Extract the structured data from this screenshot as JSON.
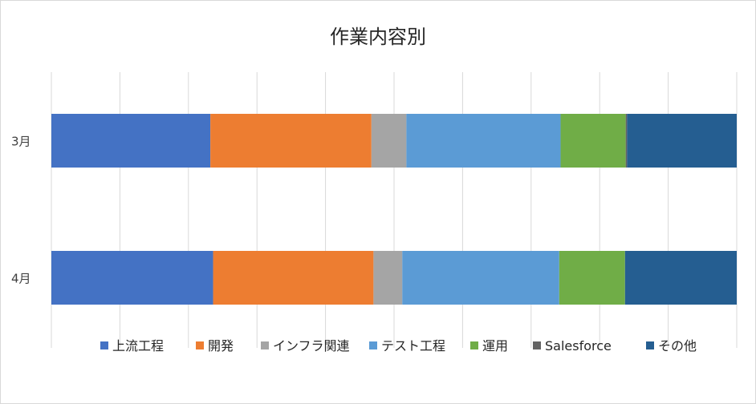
{
  "chart_data": {
    "type": "bar",
    "orientation": "horizontal",
    "stacked": "100%",
    "title": "作業内容別",
    "categories": [
      "3月",
      "4月"
    ],
    "series": [
      {
        "name": "上流工程",
        "color": "#4472C4",
        "values": [
          23.2,
          23.6
        ]
      },
      {
        "name": "開発",
        "color": "#ED7D31",
        "values": [
          23.5,
          23.4
        ]
      },
      {
        "name": "インフラ関連",
        "color": "#A5A5A5",
        "values": [
          5.1,
          4.2
        ]
      },
      {
        "name": "テスト工程",
        "color": "#5B9BD5",
        "values": [
          22.5,
          22.9
        ]
      },
      {
        "name": "運用",
        "color": "#70AD47",
        "values": [
          9.5,
          9.6
        ]
      },
      {
        "name": "Salesforce",
        "color": "#636363",
        "values": [
          0.2,
          0.0
        ]
      },
      {
        "name": "その他",
        "color": "#255E91",
        "values": [
          16.0,
          16.3
        ]
      }
    ],
    "xlim": [
      0,
      100
    ],
    "grid": true,
    "legend": "bottom"
  }
}
